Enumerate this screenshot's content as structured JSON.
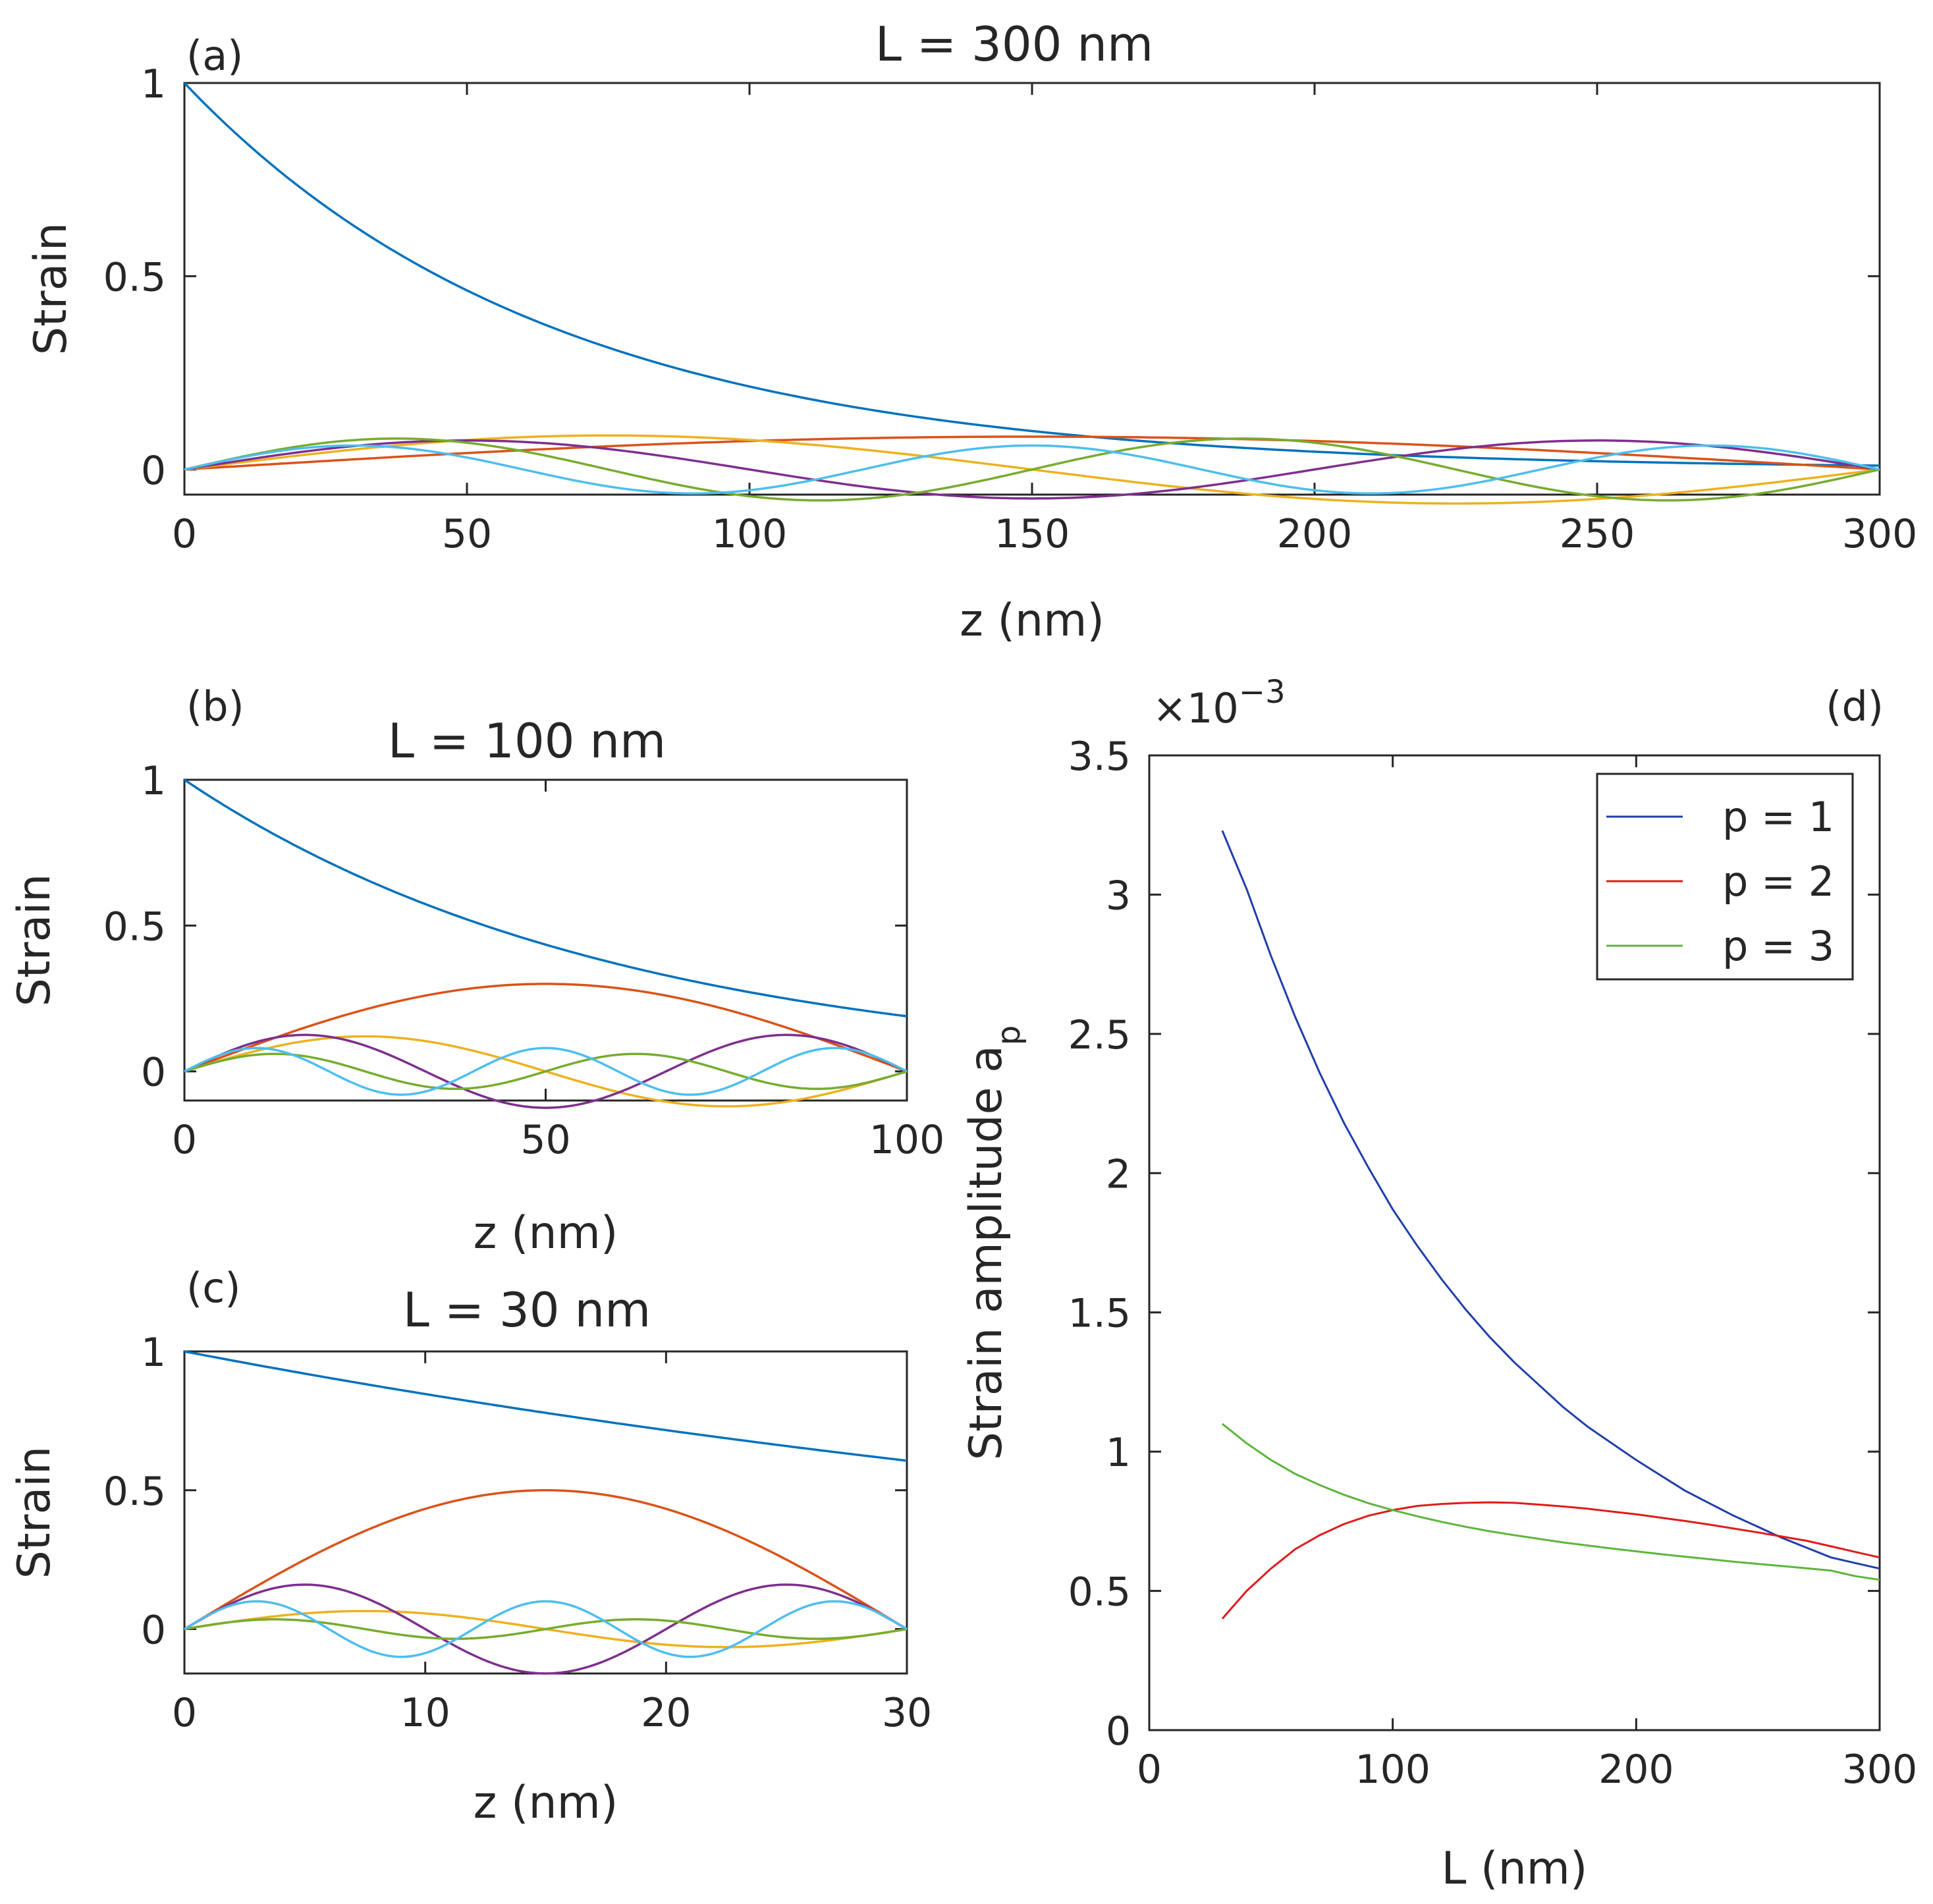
{
  "figure": {
    "description_free": true
  },
  "chart_data": [
    {
      "panel": "(a)",
      "type": "line",
      "title": "L = 300 nm",
      "xlabel": "z (nm)",
      "ylabel": "Strain",
      "xlim": [
        0,
        300
      ],
      "ylim": [
        -0.065,
        1.0
      ],
      "xticks": [
        0,
        50,
        100,
        150,
        200,
        250,
        300
      ],
      "xtick_labels": [
        "0",
        "50",
        "100",
        "150",
        "200",
        "250",
        "300"
      ],
      "yticks": [
        0,
        0.5,
        1
      ],
      "ytick_labels": [
        "0",
        "0.5",
        "1"
      ],
      "L": 300,
      "decay_length": 65,
      "mode_amplitudes": [
        0.085,
        0.088,
        0.075,
        0.08,
        0.062
      ],
      "series_colors": [
        "#0072BD",
        "#D95319",
        "#EDB120",
        "#7E2F8E",
        "#77AC30",
        "#4DBEEE"
      ]
    },
    {
      "panel": "(b)",
      "type": "line",
      "title": "L = 100 nm",
      "xlabel": "z (nm)",
      "ylabel": "Strain",
      "xlim": [
        0,
        100
      ],
      "ylim": [
        -0.1,
        1.0
      ],
      "xticks": [
        0,
        50,
        100
      ],
      "xtick_labels": [
        "0",
        "50",
        "100"
      ],
      "yticks": [
        0,
        0.5,
        1
      ],
      "ytick_labels": [
        "0",
        "0.5",
        "1"
      ],
      "L": 100,
      "decay_length": 60,
      "mode_amplitudes": [
        0.3,
        0.12,
        0.125,
        0.06,
        0.08
      ],
      "series_colors": [
        "#0072BD",
        "#D95319",
        "#EDB120",
        "#7E2F8E",
        "#77AC30",
        "#4DBEEE"
      ]
    },
    {
      "panel": "(c)",
      "type": "line",
      "title": "L = 30 nm",
      "xlabel": "z (nm)",
      "ylabel": "Strain",
      "xlim": [
        0,
        30
      ],
      "ylim": [
        -0.16,
        1.0
      ],
      "xticks": [
        0,
        10,
        20,
        30
      ],
      "xtick_labels": [
        "0",
        "10",
        "20",
        "30"
      ],
      "yticks": [
        0,
        0.5,
        1
      ],
      "ytick_labels": [
        "0",
        "0.5",
        "1"
      ],
      "L": 30,
      "decay_length": 60,
      "mode_amplitudes": [
        0.5,
        0.065,
        0.16,
        0.035,
        0.1
      ],
      "series_colors": [
        "#0072BD",
        "#D95319",
        "#EDB120",
        "#7E2F8E",
        "#77AC30",
        "#4DBEEE"
      ]
    },
    {
      "panel": "(d)",
      "type": "line",
      "title": "",
      "xlabel": "L (nm)",
      "ylabel": "Strain amplitude a",
      "ylabel_subscript": "p",
      "exponent_label": "×10",
      "exponent_power": "−3",
      "xlim": [
        0,
        300
      ],
      "ylim": [
        0,
        3.5
      ],
      "xticks": [
        0,
        100,
        200,
        300
      ],
      "xtick_labels": [
        "0",
        "100",
        "200",
        "300"
      ],
      "yticks": [
        0,
        0.5,
        1,
        1.5,
        2,
        2.5,
        3,
        3.5
      ],
      "ytick_labels": [
        "0",
        "0.5",
        "1",
        "1.5",
        "2",
        "2.5",
        "3",
        "3.5"
      ],
      "x": [
        30,
        40,
        50,
        60,
        70,
        80,
        90,
        100,
        110,
        120,
        130,
        140,
        150,
        160,
        170,
        180,
        190,
        200,
        210,
        220,
        230,
        240,
        250,
        260,
        270,
        280,
        290,
        300
      ],
      "series": [
        {
          "name": "p = 1",
          "color": "#1F3FA8",
          "values": [
            3.23,
            3.02,
            2.78,
            2.56,
            2.36,
            2.18,
            2.02,
            1.87,
            1.74,
            1.62,
            1.51,
            1.41,
            1.32,
            1.24,
            1.16,
            1.09,
            1.03,
            0.97,
            0.915,
            0.86,
            0.815,
            0.77,
            0.73,
            0.69,
            0.655,
            0.62,
            0.6,
            0.58
          ]
        },
        {
          "name": "p = 2",
          "color": "#E01B1B",
          "values": [
            0.4,
            0.5,
            0.58,
            0.65,
            0.7,
            0.74,
            0.77,
            0.79,
            0.805,
            0.812,
            0.816,
            0.818,
            0.816,
            0.81,
            0.803,
            0.795,
            0.785,
            0.775,
            0.763,
            0.751,
            0.738,
            0.724,
            0.71,
            0.695,
            0.68,
            0.66,
            0.64,
            0.62
          ]
        },
        {
          "name": "p = 3",
          "color": "#5DB53C",
          "values": [
            1.1,
            1.03,
            0.97,
            0.92,
            0.88,
            0.845,
            0.815,
            0.79,
            0.768,
            0.748,
            0.73,
            0.714,
            0.7,
            0.687,
            0.674,
            0.663,
            0.652,
            0.642,
            0.632,
            0.623,
            0.614,
            0.605,
            0.597,
            0.589,
            0.581,
            0.573,
            0.553,
            0.54
          ]
        }
      ],
      "legend": [
        "p = 1",
        "p = 2",
        "p = 3"
      ],
      "legend_position": "top-right"
    }
  ]
}
